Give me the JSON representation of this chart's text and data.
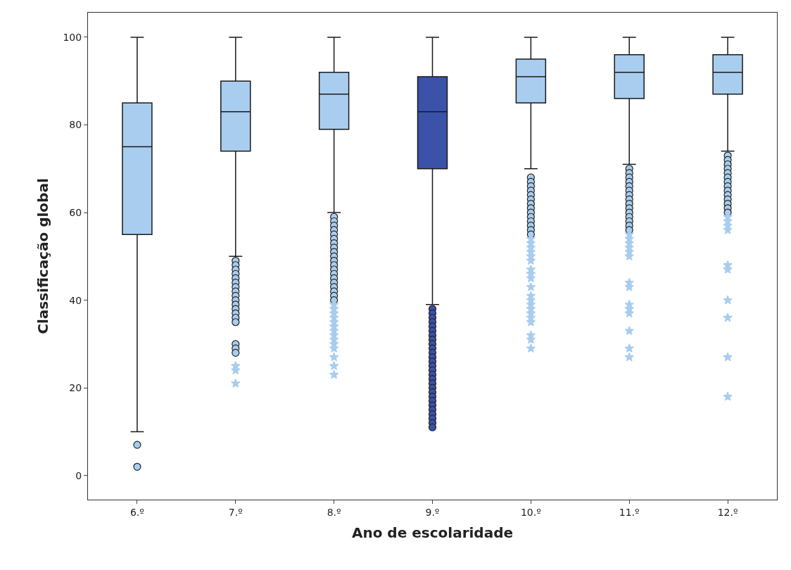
{
  "chart_data": {
    "type": "box",
    "xlabel": "Ano de escolaridade",
    "ylabel": "Classificação global",
    "categories": [
      "6.º",
      "7.º",
      "8.º",
      "9.º",
      "10.º",
      "11.º",
      "12.º"
    ],
    "ylim": [
      -5.5,
      105.6
    ],
    "yticks": [
      0,
      20,
      40,
      60,
      80,
      100
    ],
    "series": [
      {
        "colors": [
          "#a8cdee",
          "#a8cdee",
          "#a8cdee",
          "#3a52a8",
          "#a8cdee",
          "#a8cdee",
          "#a8cdee"
        ],
        "boxes": [
          {
            "low": 10,
            "q1": 55,
            "median": 75,
            "q3": 85,
            "high": 100,
            "outliers": [
              7,
              2
            ]
          },
          {
            "low": 50,
            "q1": 74,
            "median": 83,
            "q3": 90,
            "high": 100,
            "outliers": [
              49,
              48,
              47,
              46,
              45,
              44,
              43,
              42,
              41,
              40,
              39,
              38,
              37,
              36,
              35,
              30,
              29,
              28
            ]
          },
          {
            "low": 60,
            "q1": 79,
            "median": 87,
            "q3": 92,
            "high": 100,
            "outliers": [
              59,
              58,
              57,
              56,
              55,
              54,
              53,
              52,
              51,
              50,
              49,
              48,
              47,
              46,
              45,
              44,
              43,
              42,
              41,
              40
            ]
          },
          {
            "low": 39,
            "q1": 70,
            "median": 83,
            "q3": 91,
            "high": 100,
            "outliers": [
              38,
              37,
              36,
              35,
              34,
              33,
              32,
              31,
              30,
              29,
              28,
              27,
              26,
              25,
              24,
              23,
              22,
              21,
              20,
              19,
              18,
              17,
              16,
              15,
              14,
              13,
              12,
              11
            ]
          },
          {
            "low": 70,
            "q1": 85,
            "median": 91,
            "q3": 95,
            "high": 100,
            "outliers": [
              68,
              67,
              66,
              65,
              64,
              63,
              62,
              61,
              60,
              59,
              58,
              57,
              56,
              55
            ]
          },
          {
            "low": 71,
            "q1": 86,
            "median": 92,
            "q3": 96,
            "high": 100,
            "outliers": [
              70,
              69,
              68,
              67,
              66,
              65,
              64,
              63,
              62,
              61,
              60,
              59,
              58,
              57,
              56
            ]
          },
          {
            "low": 74,
            "q1": 87,
            "median": 92,
            "q3": 96,
            "high": 100,
            "outliers": [
              73,
              72,
              71,
              70,
              69,
              68,
              67,
              66,
              65,
              64,
              63,
              62,
              61,
              60
            ]
          }
        ]
      },
      {
        "type": "scatter",
        "marker": "star",
        "color": "#a8cdee",
        "x": [
          "7.º",
          "7.º",
          "7.º",
          "8.º",
          "8.º",
          "8.º",
          "8.º",
          "8.º",
          "8.º",
          "8.º",
          "8.º",
          "8.º",
          "8.º",
          "8.º",
          "8.º",
          "8.º",
          "8.º",
          "10.º",
          "10.º",
          "10.º",
          "10.º",
          "10.º",
          "10.º",
          "10.º",
          "10.º",
          "10.º",
          "10.º",
          "10.º",
          "10.º",
          "10.º",
          "10.º",
          "10.º",
          "10.º",
          "10.º",
          "10.º",
          "10.º",
          "10.º",
          "11.º",
          "11.º",
          "11.º",
          "11.º",
          "11.º",
          "11.º",
          "11.º",
          "11.º",
          "11.º",
          "11.º",
          "11.º",
          "11.º",
          "11.º",
          "11.º",
          "12.º",
          "12.º",
          "12.º",
          "12.º",
          "12.º",
          "12.º",
          "12.º",
          "12.º",
          "12.º",
          "12.º"
        ],
        "values": [
          25,
          24,
          21,
          39,
          38,
          37,
          36,
          35,
          34,
          33,
          32,
          31,
          30,
          29,
          27,
          25,
          23,
          54,
          53,
          52,
          51,
          50,
          49,
          47,
          46,
          45,
          43,
          41,
          40,
          39,
          38,
          37,
          36,
          35,
          32,
          31,
          29,
          55,
          54,
          53,
          52,
          51,
          50,
          44,
          43,
          39,
          38,
          37,
          33,
          29,
          27,
          59,
          58,
          57,
          56,
          48,
          47,
          40,
          36,
          27,
          18
        ]
      }
    ]
  }
}
